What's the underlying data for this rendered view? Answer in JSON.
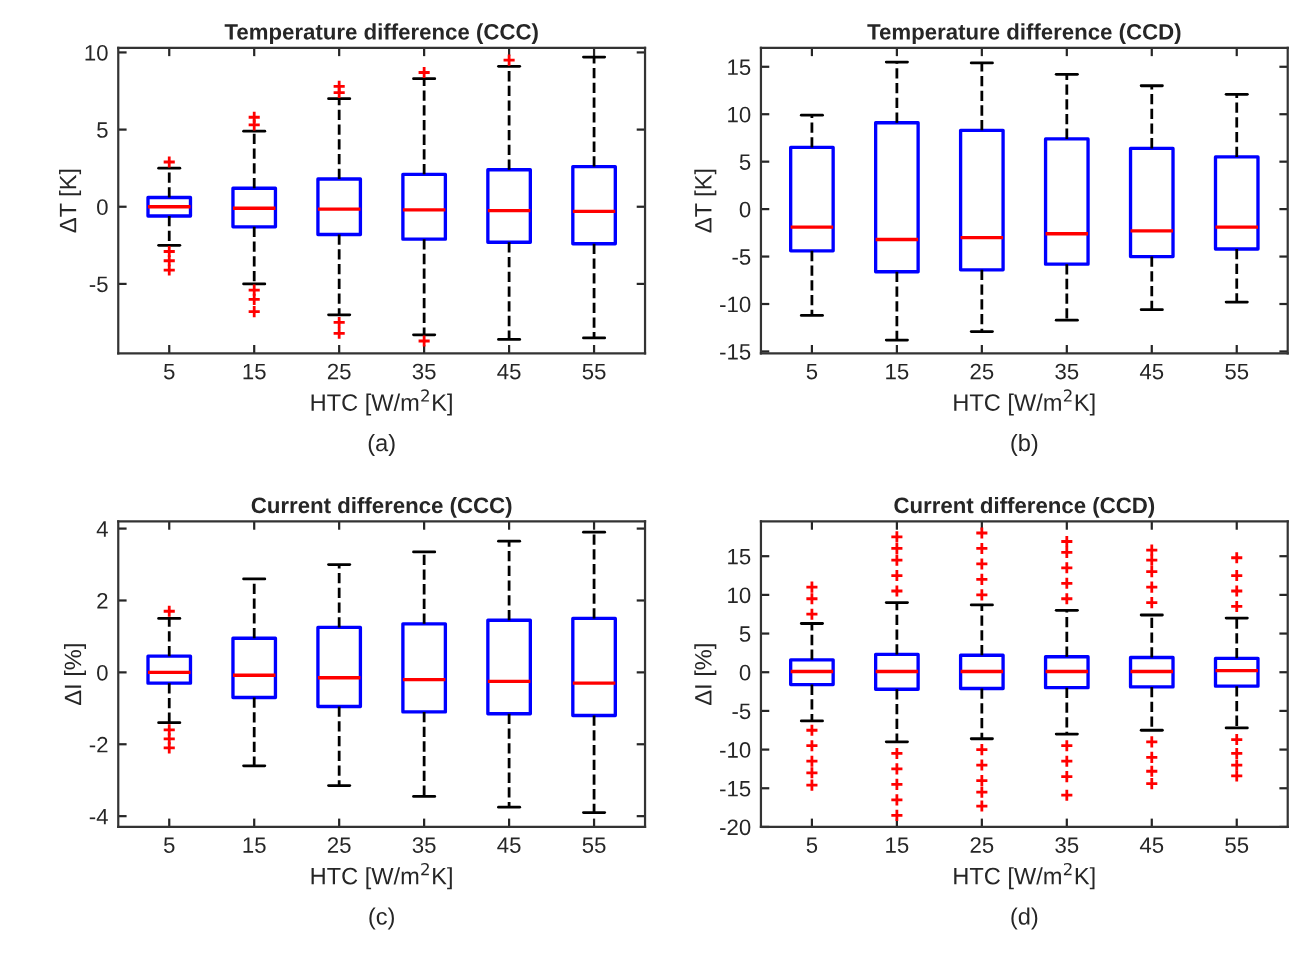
{
  "chart_data": [
    {
      "type": "box",
      "title": "Temperature difference (CCC)",
      "xlabel": "HTC [W/m$^{2}$K]",
      "ylabel": "ΔT [K]",
      "annotations": [
        "(a)"
      ],
      "categories": [
        "5",
        "15",
        "25",
        "35",
        "45",
        "55"
      ],
      "ylim": [
        -9.5,
        10.3
      ],
      "yticks": [
        -5,
        0,
        5,
        10
      ],
      "grid": false,
      "line_style": "dashed",
      "marker": "cross",
      "series": [
        {
          "color": "#0000ff",
          "boxes": [
            {
              "low": -2.5,
              "q1": -0.6,
              "median": 0,
              "q3": 0.6,
              "high": 2.5,
              "outliers": [
                2.9,
                -2.9,
                -3.5,
                -4.1
              ]
            },
            {
              "low": -5.0,
              "q1": -1.3,
              "median": -0.1,
              "q3": 1.2,
              "high": 4.9,
              "outliers": [
                5.3,
                5.8,
                -5.4,
                -6.0,
                -6.8
              ]
            },
            {
              "low": -7.0,
              "q1": -1.8,
              "median": -0.15,
              "q3": 1.8,
              "high": 7.0,
              "outliers": [
                7.4,
                7.8,
                -7.5,
                -8.2
              ]
            },
            {
              "low": -8.3,
              "q1": -2.1,
              "median": -0.2,
              "q3": 2.1,
              "high": 8.3,
              "outliers": [
                8.7,
                -8.7
              ]
            },
            {
              "low": -8.6,
              "q1": -2.3,
              "median": -0.25,
              "q3": 2.4,
              "high": 9.1,
              "outliers": [
                9.5
              ]
            },
            {
              "low": -8.5,
              "q1": -2.4,
              "median": -0.3,
              "q3": 2.6,
              "high": 9.7
            }
          ]
        }
      ]
    },
    {
      "type": "box",
      "title": "Temperature difference (CCD)",
      "xlabel": "HTC [W/m$^{2}$K]",
      "ylabel": "ΔT [K]",
      "annotations": [
        "(b)"
      ],
      "categories": [
        "5",
        "15",
        "25",
        "35",
        "45",
        "55"
      ],
      "ylim": [
        -15.2,
        17
      ],
      "yticks": [
        -15,
        -10,
        -5,
        0,
        5,
        10,
        15
      ],
      "grid": false,
      "line_style": "dashed",
      "marker": "cross",
      "series": [
        {
          "color": "#0000ff",
          "boxes": [
            {
              "low": -11.2,
              "q1": -4.4,
              "median": -1.9,
              "q3": 6.5,
              "high": 9.9
            },
            {
              "low": -13.8,
              "q1": -6.6,
              "median": -3.2,
              "q3": 9.1,
              "high": 15.5
            },
            {
              "low": -12.9,
              "q1": -6.4,
              "median": -3.0,
              "q3": 8.3,
              "high": 15.4
            },
            {
              "low": -11.7,
              "q1": -5.8,
              "median": -2.6,
              "q3": 7.4,
              "high": 14.2
            },
            {
              "low": -10.6,
              "q1": -5.0,
              "median": -2.3,
              "q3": 6.4,
              "high": 13.0
            },
            {
              "low": -9.8,
              "q1": -4.2,
              "median": -1.9,
              "q3": 5.5,
              "high": 12.1
            }
          ]
        }
      ]
    },
    {
      "type": "box",
      "title": "Current difference (CCC)",
      "xlabel": "HTC [W/m$^{2}$K]",
      "ylabel": "ΔI [%]",
      "annotations": [
        "(c)"
      ],
      "categories": [
        "5",
        "15",
        "25",
        "35",
        "45",
        "55"
      ],
      "ylim": [
        -4.3,
        4.2
      ],
      "yticks": [
        -4,
        -2,
        0,
        2,
        4
      ],
      "grid": false,
      "line_style": "dashed",
      "marker": "cross",
      "series": [
        {
          "color": "#0000ff",
          "boxes": [
            {
              "low": -1.4,
              "q1": -0.3,
              "median": 0,
              "q3": 0.45,
              "high": 1.5,
              "outliers": [
                1.7,
                -1.6,
                -1.85,
                -2.1
              ]
            },
            {
              "low": -2.6,
              "q1": -0.7,
              "median": -0.08,
              "q3": 0.95,
              "high": 2.6
            },
            {
              "low": -3.15,
              "q1": -0.95,
              "median": -0.15,
              "q3": 1.25,
              "high": 3.0
            },
            {
              "low": -3.45,
              "q1": -1.1,
              "median": -0.2,
              "q3": 1.35,
              "high": 3.35
            },
            {
              "low": -3.75,
              "q1": -1.15,
              "median": -0.25,
              "q3": 1.45,
              "high": 3.65
            },
            {
              "low": -3.9,
              "q1": -1.2,
              "median": -0.3,
              "q3": 1.5,
              "high": 3.9
            }
          ]
        }
      ]
    },
    {
      "type": "box",
      "title": "Current difference (CCD)",
      "xlabel": "HTC [W/m$^{2}$K]",
      "ylabel": "ΔI [%]",
      "annotations": [
        "(d)"
      ],
      "categories": [
        "5",
        "15",
        "25",
        "35",
        "45",
        "55"
      ],
      "ylim": [
        -20,
        19.5
      ],
      "yticks": [
        -20,
        -15,
        -10,
        -5,
        0,
        5,
        10,
        15
      ],
      "grid": false,
      "line_style": "dashed",
      "marker": "cross",
      "series": [
        {
          "color": "#0000ff",
          "boxes": [
            {
              "low": -6.3,
              "q1": -1.6,
              "median": 0.1,
              "q3": 1.6,
              "high": 6.3,
              "outliers": [
                7.5,
                9.5,
                11,
                -7.5,
                -9.5,
                -11.5,
                -13,
                -14.6
              ]
            },
            {
              "low": -9.0,
              "q1": -2.2,
              "median": 0.1,
              "q3": 2.3,
              "high": 9.0,
              "outliers": [
                10.5,
                12.5,
                14.5,
                16,
                17.5,
                -10.5,
                -12.5,
                -14.5,
                -16.5,
                -18.5
              ]
            },
            {
              "low": -8.6,
              "q1": -2.1,
              "median": 0.1,
              "q3": 2.2,
              "high": 8.7,
              "outliers": [
                10,
                12,
                14,
                16,
                18,
                -10,
                -12,
                -14,
                -15.5,
                -17.3
              ]
            },
            {
              "low": -8.0,
              "q1": -2.0,
              "median": 0.1,
              "q3": 2.0,
              "high": 8.0,
              "outliers": [
                9.5,
                11.5,
                13.5,
                15.5,
                16.9,
                -9.5,
                -11.5,
                -13.5,
                -15.9
              ]
            },
            {
              "low": -7.5,
              "q1": -1.9,
              "median": 0.1,
              "q3": 1.9,
              "high": 7.4,
              "outliers": [
                9,
                11,
                13,
                14.5,
                15.8,
                -9,
                -11,
                -12.8,
                -14.4
              ]
            },
            {
              "low": -7.2,
              "q1": -1.8,
              "median": 0.2,
              "q3": 1.8,
              "high": 7.0,
              "outliers": [
                8.5,
                10.5,
                12.5,
                14.8,
                -8.7,
                -10.5,
                -12,
                -13.4
              ]
            }
          ]
        }
      ]
    }
  ]
}
